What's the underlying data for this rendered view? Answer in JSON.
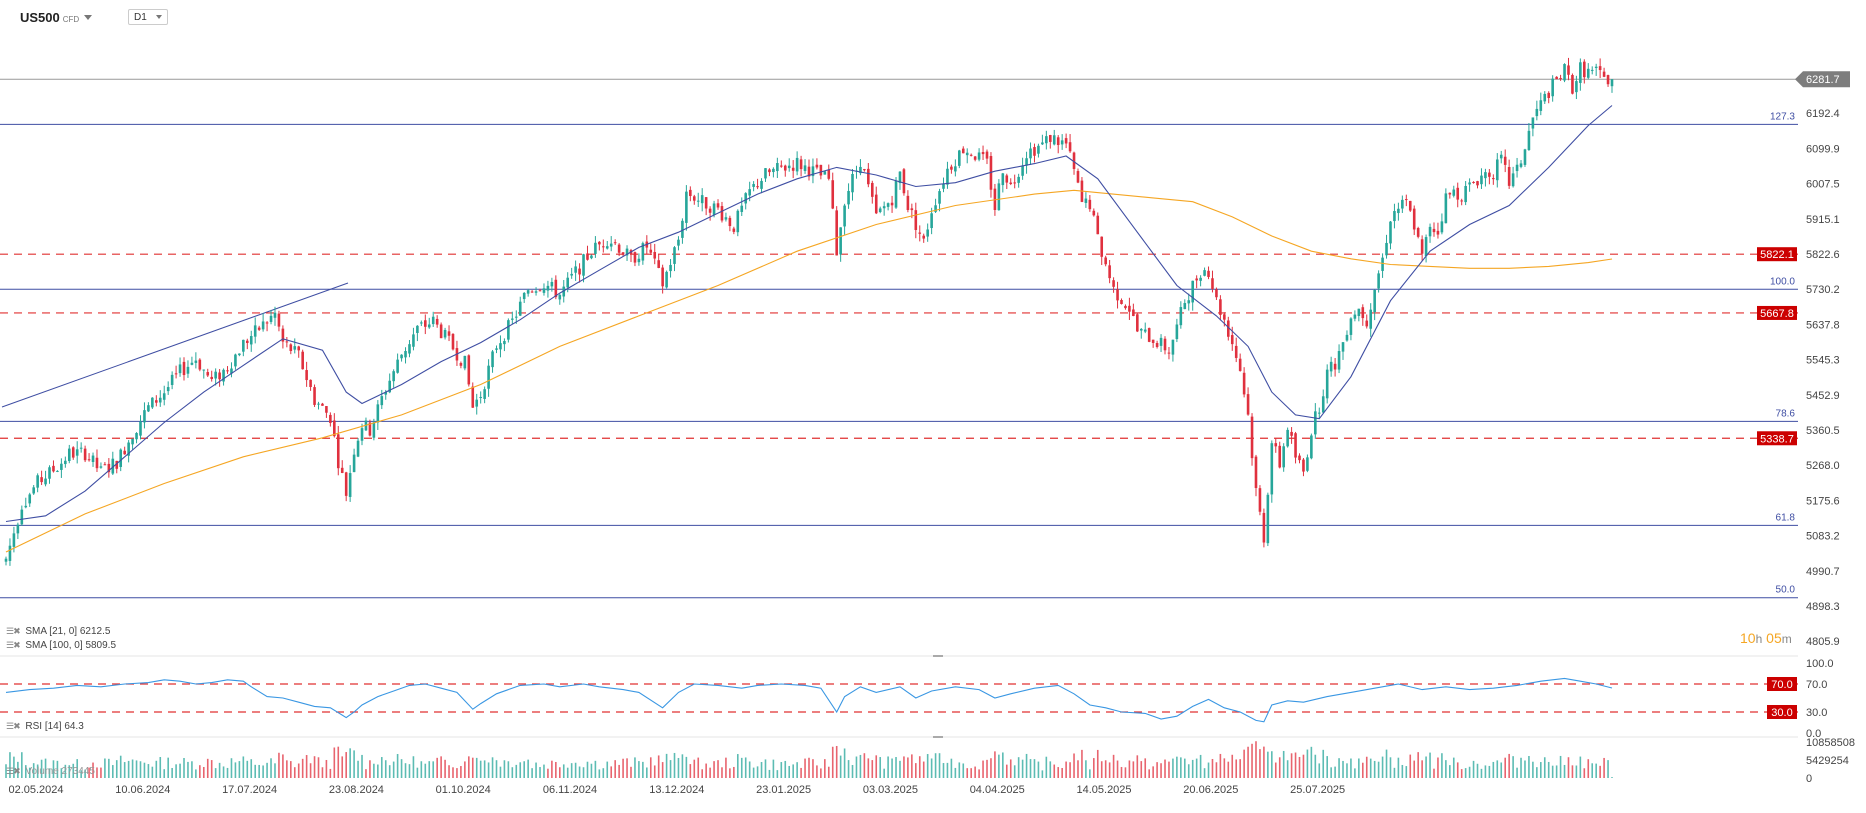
{
  "header": {
    "symbol": "US500",
    "symbol_type": "CFD",
    "timeframe": "D1"
  },
  "indicators": {
    "sma21": "SMA [21, 0]",
    "sma21_value": "6212.5",
    "sma100": "SMA [100, 0]",
    "sma100_value": "5809.5",
    "volume": "Volume",
    "volume_value": "273445",
    "rsi": "RSI [14]",
    "rsi_value": "64.3"
  },
  "timer": {
    "hours": "10",
    "h_unit": "h",
    "minutes": "05",
    "m_unit": "m"
  },
  "colors": {
    "bull": "#26a69a",
    "bear": "#e0303e",
    "sma21": "#3f4ea3",
    "sma100": "#f5a623",
    "rsi": "#3a97e3",
    "level_red": "#e03030",
    "fib": "#3f4ea3",
    "price_tag": "#7d7d7d",
    "level_tag": "#cc0000"
  },
  "chart_data": {
    "type": "candlestick",
    "instrument": "US500",
    "timeframe": "D1",
    "y_range": [
      4780,
      6340
    ],
    "y_ticks": [
      "6192.4",
      "6099.9",
      "6007.5",
      "5915.1",
      "5822.6",
      "5730.2",
      "5637.8",
      "5545.3",
      "5452.9",
      "5360.5",
      "5268.0",
      "5175.6",
      "5083.2",
      "4990.7",
      "4898.3",
      "4805.9"
    ],
    "x_dates": [
      "02.05.2024",
      "10.06.2024",
      "17.07.2024",
      "23.08.2024",
      "01.10.2024",
      "06.11.2024",
      "13.12.2024",
      "23.01.2025",
      "03.03.2025",
      "04.04.2025",
      "14.05.2025",
      "20.06.2025",
      "25.07.2025"
    ],
    "last_price": "6281.7",
    "last_price_value": 6281.7,
    "fib_levels": [
      {
        "label": "127.3",
        "value": 6163
      },
      {
        "label": "100.0",
        "value": 5730
      },
      {
        "label": "78.6",
        "value": 5383
      },
      {
        "label": "61.8",
        "value": 5110
      },
      {
        "label": "50.0",
        "value": 4920
      }
    ],
    "key_levels": [
      {
        "label": "5822.1",
        "value": 5822.1
      },
      {
        "label": "5667.8",
        "value": 5667.8
      },
      {
        "label": "5338.7",
        "value": 5338.7
      }
    ],
    "close_path": [
      [
        0,
        5020
      ],
      [
        4,
        5165
      ],
      [
        8,
        5222
      ],
      [
        13,
        5264
      ],
      [
        16,
        5298
      ],
      [
        20,
        5300
      ],
      [
        24,
        5250
      ],
      [
        28,
        5277
      ],
      [
        32,
        5352
      ],
      [
        36,
        5420
      ],
      [
        40,
        5460
      ],
      [
        44,
        5513
      ],
      [
        48,
        5548
      ],
      [
        52,
        5488
      ],
      [
        56,
        5525
      ],
      [
        60,
        5588
      ],
      [
        64,
        5627
      ],
      [
        68,
        5665
      ],
      [
        70,
        5590
      ],
      [
        74,
        5555
      ],
      [
        78,
        5440
      ],
      [
        82,
        5395
      ],
      [
        84,
        5280
      ],
      [
        86,
        5195
      ],
      [
        88,
        5310
      ],
      [
        90,
        5375
      ],
      [
        92,
        5360
      ],
      [
        96,
        5470
      ],
      [
        100,
        5560
      ],
      [
        104,
        5626
      ],
      [
        108,
        5646
      ],
      [
        112,
        5590
      ],
      [
        116,
        5535
      ],
      [
        118,
        5420
      ],
      [
        120,
        5455
      ],
      [
        124,
        5583
      ],
      [
        128,
        5645
      ],
      [
        132,
        5730
      ],
      [
        136,
        5746
      ],
      [
        140,
        5716
      ],
      [
        144,
        5775
      ],
      [
        148,
        5830
      ],
      [
        152,
        5863
      ],
      [
        154,
        5852
      ],
      [
        158,
        5808
      ],
      [
        162,
        5843
      ],
      [
        166,
        5744
      ],
      [
        170,
        5860
      ],
      [
        172,
        5985
      ],
      [
        176,
        5960
      ],
      [
        180,
        5940
      ],
      [
        184,
        5895
      ],
      [
        188,
        5986
      ],
      [
        192,
        6032
      ],
      [
        196,
        6048
      ],
      [
        200,
        6062
      ],
      [
        204,
        6040
      ],
      [
        208,
        6017
      ],
      [
        210,
        5830
      ],
      [
        212,
        5968
      ],
      [
        216,
        6070
      ],
      [
        220,
        5920
      ],
      [
        224,
        5970
      ],
      [
        226,
        6035
      ],
      [
        228,
        5950
      ],
      [
        232,
        5853
      ],
      [
        234,
        5940
      ],
      [
        238,
        6045
      ],
      [
        242,
        6100
      ],
      [
        244,
        6090
      ],
      [
        248,
        6060
      ],
      [
        250,
        5945
      ],
      [
        252,
        6050
      ],
      [
        254,
        6000
      ],
      [
        258,
        6090
      ],
      [
        262,
        6110
      ],
      [
        264,
        6130
      ],
      [
        268,
        6110
      ],
      [
        270,
        6040
      ],
      [
        272,
        5955
      ],
      [
        274,
        5955
      ],
      [
        276,
        5860
      ],
      [
        280,
        5730
      ],
      [
        284,
        5680
      ],
      [
        286,
        5620
      ],
      [
        290,
        5600
      ],
      [
        294,
        5570
      ],
      [
        296,
        5630
      ],
      [
        298,
        5700
      ],
      [
        300,
        5740
      ],
      [
        302,
        5780
      ],
      [
        304,
        5780
      ],
      [
        306,
        5700
      ],
      [
        308,
        5650
      ],
      [
        310,
        5590
      ],
      [
        312,
        5520
      ],
      [
        314,
        5400
      ],
      [
        316,
        5200
      ],
      [
        318,
        5080
      ],
      [
        320,
        5330
      ],
      [
        322,
        5270
      ],
      [
        324,
        5370
      ],
      [
        326,
        5290
      ],
      [
        328,
        5250
      ],
      [
        330,
        5360
      ],
      [
        332,
        5425
      ],
      [
        334,
        5510
      ],
      [
        336,
        5535
      ],
      [
        338,
        5593
      ],
      [
        340,
        5665
      ],
      [
        342,
        5680
      ],
      [
        344,
        5650
      ],
      [
        346,
        5735
      ],
      [
        348,
        5810
      ],
      [
        350,
        5920
      ],
      [
        352,
        5945
      ],
      [
        354,
        5955
      ],
      [
        356,
        5900
      ],
      [
        358,
        5812
      ],
      [
        360,
        5900
      ],
      [
        362,
        5880
      ],
      [
        364,
        5970
      ],
      [
        366,
        5985
      ],
      [
        368,
        5980
      ],
      [
        370,
        6000
      ],
      [
        372,
        6020
      ],
      [
        374,
        6035
      ],
      [
        376,
        6038
      ],
      [
        378,
        6068
      ],
      [
        380,
        6010
      ],
      [
        382,
        6040
      ],
      [
        384,
        6100
      ],
      [
        386,
        6180
      ],
      [
        388,
        6215
      ],
      [
        390,
        6250
      ],
      [
        392,
        6277
      ],
      [
        394,
        6304
      ],
      [
        396,
        6260
      ],
      [
        398,
        6310
      ],
      [
        400,
        6300
      ],
      [
        402,
        6300
      ],
      [
        404,
        6280
      ],
      [
        406,
        6281.7
      ]
    ],
    "sma21_path": [
      [
        0,
        5120
      ],
      [
        10,
        5135
      ],
      [
        20,
        5200
      ],
      [
        30,
        5290
      ],
      [
        40,
        5380
      ],
      [
        50,
        5460
      ],
      [
        60,
        5530
      ],
      [
        70,
        5600
      ],
      [
        80,
        5570
      ],
      [
        86,
        5460
      ],
      [
        90,
        5430
      ],
      [
        100,
        5480
      ],
      [
        110,
        5540
      ],
      [
        120,
        5590
      ],
      [
        130,
        5650
      ],
      [
        140,
        5720
      ],
      [
        150,
        5780
      ],
      [
        160,
        5840
      ],
      [
        170,
        5880
      ],
      [
        180,
        5930
      ],
      [
        190,
        5980
      ],
      [
        200,
        6020
      ],
      [
        210,
        6050
      ],
      [
        220,
        6030
      ],
      [
        230,
        6000
      ],
      [
        240,
        6010
      ],
      [
        250,
        6040
      ],
      [
        260,
        6060
      ],
      [
        268,
        6080
      ],
      [
        276,
        6020
      ],
      [
        286,
        5880
      ],
      [
        296,
        5740
      ],
      [
        306,
        5660
      ],
      [
        314,
        5580
      ],
      [
        320,
        5460
      ],
      [
        326,
        5400
      ],
      [
        332,
        5390
      ],
      [
        340,
        5500
      ],
      [
        350,
        5700
      ],
      [
        360,
        5830
      ],
      [
        370,
        5900
      ],
      [
        380,
        5950
      ],
      [
        390,
        6050
      ],
      [
        400,
        6160
      ],
      [
        406,
        6212.5
      ]
    ],
    "sma100_path": [
      [
        0,
        5040
      ],
      [
        20,
        5140
      ],
      [
        40,
        5220
      ],
      [
        60,
        5290
      ],
      [
        80,
        5340
      ],
      [
        100,
        5400
      ],
      [
        120,
        5480
      ],
      [
        140,
        5580
      ],
      [
        160,
        5660
      ],
      [
        180,
        5740
      ],
      [
        200,
        5830
      ],
      [
        220,
        5900
      ],
      [
        240,
        5950
      ],
      [
        260,
        5980
      ],
      [
        270,
        5990
      ],
      [
        290,
        5970
      ],
      [
        300,
        5960
      ],
      [
        310,
        5920
      ],
      [
        320,
        5870
      ],
      [
        330,
        5830
      ],
      [
        340,
        5810
      ],
      [
        350,
        5795
      ],
      [
        360,
        5790
      ],
      [
        370,
        5785
      ],
      [
        380,
        5785
      ],
      [
        390,
        5790
      ],
      [
        400,
        5800
      ],
      [
        406,
        5809.5
      ]
    ],
    "rsi": {
      "label": "RSI [14]",
      "value": 64.3,
      "ticks": [
        "100.0",
        "70.0",
        "30.0",
        "0.0"
      ],
      "levels": [
        70.0,
        30.0
      ],
      "path": [
        [
          0,
          58
        ],
        [
          6,
          62
        ],
        [
          12,
          64
        ],
        [
          18,
          68
        ],
        [
          24,
          66
        ],
        [
          30,
          70
        ],
        [
          36,
          72
        ],
        [
          40,
          76
        ],
        [
          44,
          74
        ],
        [
          48,
          70
        ],
        [
          52,
          72
        ],
        [
          56,
          76
        ],
        [
          60,
          74
        ],
        [
          62,
          66
        ],
        [
          66,
          52
        ],
        [
          70,
          50
        ],
        [
          74,
          44
        ],
        [
          78,
          38
        ],
        [
          82,
          36
        ],
        [
          86,
          22
        ],
        [
          88,
          30
        ],
        [
          90,
          40
        ],
        [
          94,
          52
        ],
        [
          98,
          60
        ],
        [
          102,
          68
        ],
        [
          106,
          70
        ],
        [
          110,
          64
        ],
        [
          114,
          58
        ],
        [
          118,
          34
        ],
        [
          120,
          42
        ],
        [
          124,
          56
        ],
        [
          130,
          68
        ],
        [
          136,
          70
        ],
        [
          140,
          66
        ],
        [
          146,
          70
        ],
        [
          150,
          66
        ],
        [
          156,
          62
        ],
        [
          160,
          58
        ],
        [
          166,
          36
        ],
        [
          170,
          58
        ],
        [
          174,
          70
        ],
        [
          180,
          68
        ],
        [
          186,
          64
        ],
        [
          190,
          68
        ],
        [
          196,
          70
        ],
        [
          202,
          68
        ],
        [
          206,
          64
        ],
        [
          210,
          30
        ],
        [
          212,
          52
        ],
        [
          216,
          66
        ],
        [
          220,
          58
        ],
        [
          226,
          66
        ],
        [
          230,
          50
        ],
        [
          234,
          60
        ],
        [
          240,
          66
        ],
        [
          246,
          62
        ],
        [
          250,
          50
        ],
        [
          254,
          56
        ],
        [
          260,
          64
        ],
        [
          266,
          68
        ],
        [
          270,
          56
        ],
        [
          274,
          40
        ],
        [
          278,
          36
        ],
        [
          282,
          30
        ],
        [
          288,
          28
        ],
        [
          292,
          20
        ],
        [
          296,
          24
        ],
        [
          300,
          38
        ],
        [
          304,
          48
        ],
        [
          308,
          36
        ],
        [
          312,
          30
        ],
        [
          316,
          18
        ],
        [
          318,
          16
        ],
        [
          320,
          40
        ],
        [
          324,
          46
        ],
        [
          328,
          44
        ],
        [
          334,
          52
        ],
        [
          340,
          58
        ],
        [
          346,
          64
        ],
        [
          352,
          70
        ],
        [
          358,
          62
        ],
        [
          364,
          66
        ],
        [
          370,
          62
        ],
        [
          376,
          64
        ],
        [
          382,
          68
        ],
        [
          388,
          74
        ],
        [
          394,
          78
        ],
        [
          398,
          74
        ],
        [
          402,
          70
        ],
        [
          406,
          64.3
        ]
      ]
    },
    "volume": {
      "label": "Volume",
      "value": 273445,
      "ticks": [
        "10858508",
        "5429254",
        "0"
      ]
    }
  }
}
